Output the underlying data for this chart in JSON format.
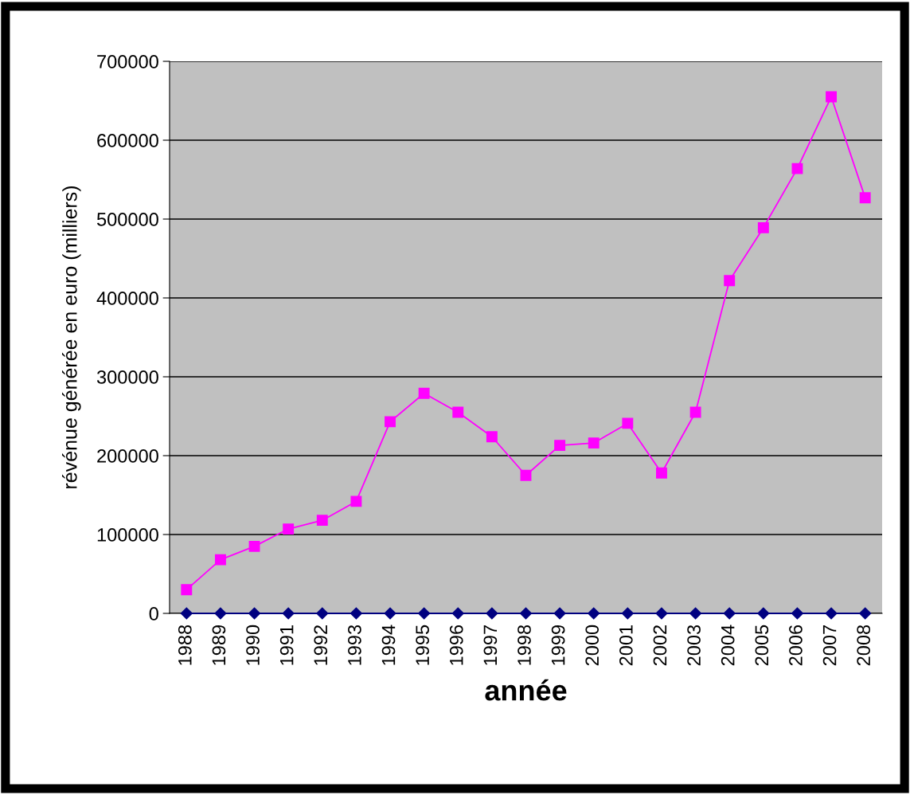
{
  "chart_data": {
    "type": "line",
    "xlabel": "année",
    "ylabel": "révénue générée en euro (milliers)",
    "categories": [
      "1988",
      "1989",
      "1990",
      "1991",
      "1992",
      "1993",
      "1994",
      "1995",
      "1996",
      "1997",
      "1998",
      "1999",
      "2000",
      "2001",
      "2002",
      "2003",
      "2004",
      "2005",
      "2006",
      "2007",
      "2008"
    ],
    "series": [
      {
        "color": "#ff00ff",
        "marker": "square",
        "values": [
          30000,
          68000,
          85000,
          107000,
          118000,
          142000,
          243000,
          279000,
          255000,
          224000,
          175000,
          213000,
          216000,
          241000,
          178000,
          255000,
          422000,
          489000,
          564000,
          655000,
          527000
        ]
      },
      {
        "color": "#000080",
        "marker": "diamond",
        "values": [
          0,
          0,
          0,
          0,
          0,
          0,
          0,
          0,
          0,
          0,
          0,
          0,
          0,
          0,
          0,
          0,
          0,
          0,
          0,
          0,
          0
        ]
      }
    ],
    "ylim": [
      0,
      700000
    ],
    "yticks": [
      0,
      100000,
      200000,
      300000,
      400000,
      500000,
      600000,
      700000
    ],
    "grid": "y",
    "legend": false
  }
}
